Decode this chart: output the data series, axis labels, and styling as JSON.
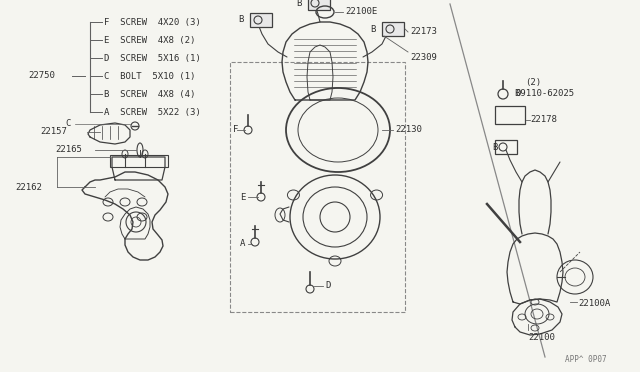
{
  "bg_color": "#f5f5f0",
  "fg_color": "#404040",
  "line_color": "#606060",
  "label_color": "#303030",
  "page_ref": "APP^ 0P07",
  "legend_items": [
    [
      "A",
      "SCREW",
      "5X22",
      "(3)"
    ],
    [
      "B",
      "SCREW",
      "4X8",
      "(4)"
    ],
    [
      "C",
      "BOLT",
      "5X10",
      "(1)"
    ],
    [
      "D",
      "SCREW",
      "5X16",
      "(1)"
    ],
    [
      "E",
      "SCREW",
      "4X8",
      "(2)"
    ],
    [
      "F",
      "SCREW",
      "4X20",
      "(3)"
    ]
  ]
}
